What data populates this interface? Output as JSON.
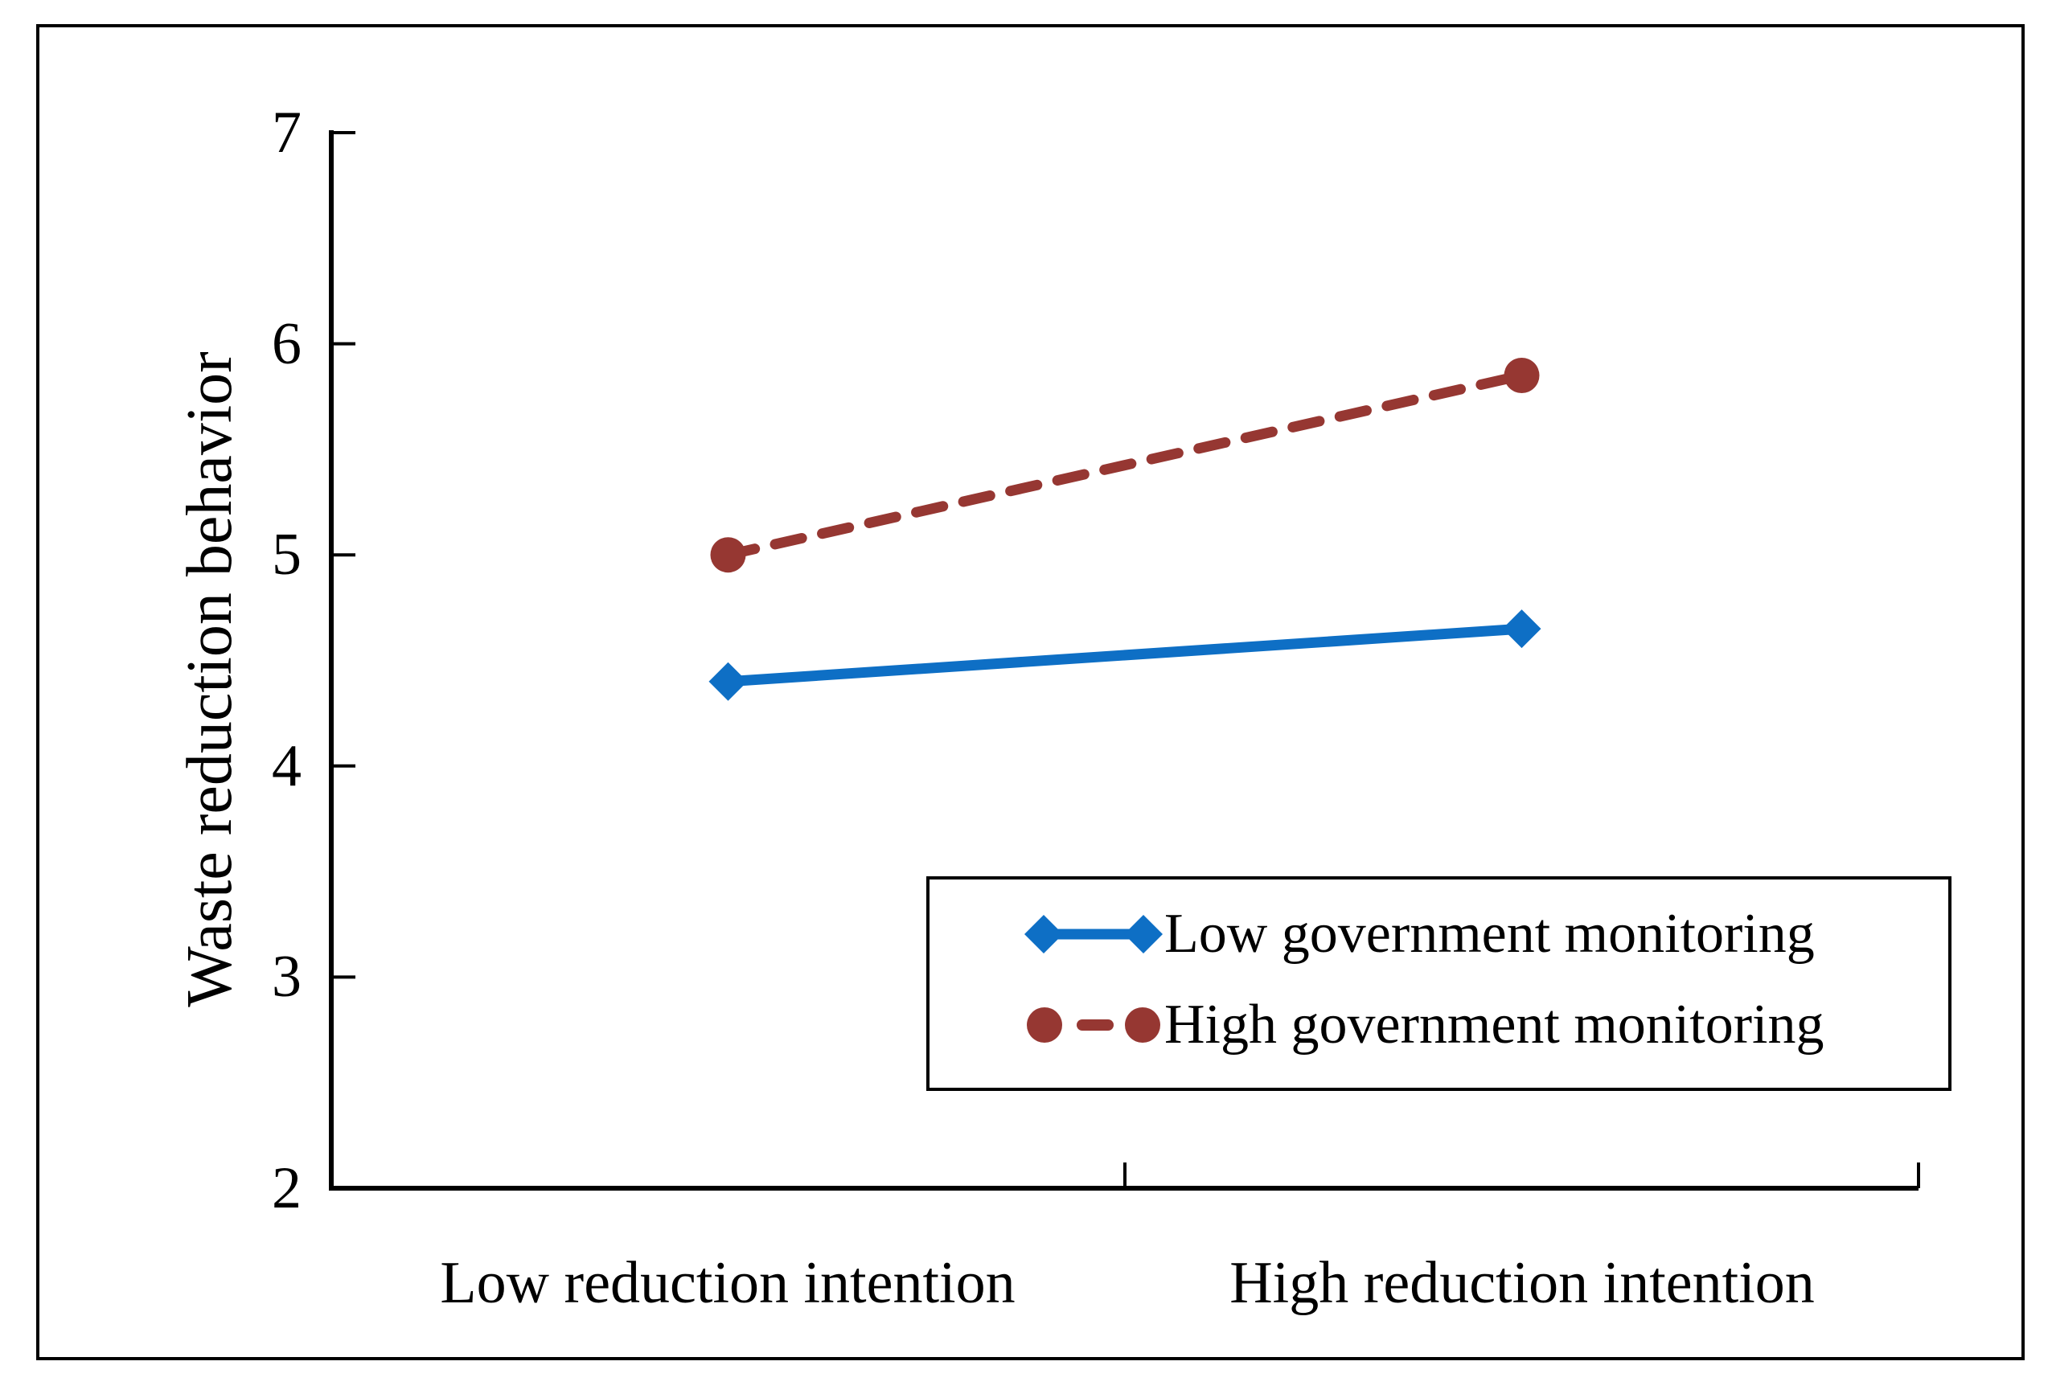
{
  "chart_data": {
    "type": "line",
    "categories": [
      "Low reduction intention",
      "High reduction intention"
    ],
    "series": [
      {
        "name": "Low government monitoring",
        "values": [
          4.4,
          4.65
        ],
        "color": "#0E6FC5",
        "line_style": "solid",
        "marker": "diamond"
      },
      {
        "name": "High government monitoring",
        "values": [
          5.0,
          5.85
        ],
        "color": "#963732",
        "line_style": "dashed",
        "marker": "circle"
      }
    ],
    "xlabel": "",
    "ylabel": "Waste reduction behavior",
    "ylim": [
      2,
      7
    ],
    "yticks": [
      7,
      6,
      5,
      4,
      3,
      2
    ],
    "grid": false,
    "legend_position": "inside lower-right",
    "axis_color": "#000000"
  }
}
